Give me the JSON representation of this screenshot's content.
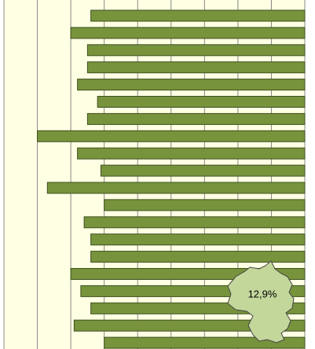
{
  "chart_data": {
    "type": "hbar",
    "categories": [
      null,
      null,
      null,
      null,
      null,
      null,
      null,
      null,
      null,
      null,
      null,
      null,
      null,
      null,
      null,
      null,
      null,
      null,
      null,
      null
    ],
    "values": [
      6.4,
      7.0,
      6.5,
      6.5,
      6.8,
      6.2,
      6.5,
      8.0,
      6.8,
      6.1,
      7.7,
      6.0,
      6.6,
      6.4,
      6.4,
      7.0,
      6.7,
      6.4,
      6.9,
      6.0
    ],
    "color": "#77933c",
    "xlim": [
      0,
      9
    ],
    "xticks": [
      0,
      1,
      2,
      3,
      4,
      5,
      6,
      7,
      8,
      9
    ],
    "x_reversed": true,
    "grid": true,
    "annotation": "12,9%"
  }
}
